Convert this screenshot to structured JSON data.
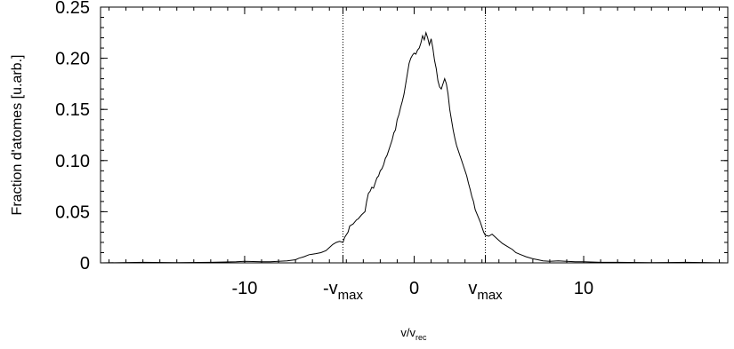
{
  "chart_data": {
    "type": "line",
    "title": "",
    "ylabel": "Fraction d'atomes [u.arb.]",
    "xlabel": {
      "main": "v/v",
      "sub": "rec"
    },
    "xlim": [
      -18.5,
      18.5
    ],
    "ylim": [
      0,
      0.25
    ],
    "grid": false,
    "y_ticks": [
      {
        "value": 0,
        "label": "0"
      },
      {
        "value": 0.05,
        "label": "0.05"
      },
      {
        "value": 0.1,
        "label": "0.10"
      },
      {
        "value": 0.15,
        "label": "0.15"
      },
      {
        "value": 0.2,
        "label": "0.20"
      },
      {
        "value": 0.25,
        "label": "0.25"
      }
    ],
    "x_ticks": [
      {
        "value": -10,
        "label": "-10"
      },
      {
        "value": -4.2,
        "main": "-v",
        "sub": "max"
      },
      {
        "value": 0,
        "label": "0"
      },
      {
        "value": 4.2,
        "main": "v",
        "sub": "max"
      },
      {
        "value": 10,
        "label": "10"
      }
    ],
    "vlines": [
      -4.2,
      4.2
    ],
    "series": [
      {
        "points": [
          [
            -18.5,
            0.0
          ],
          [
            -16,
            0.0005
          ],
          [
            -14,
            0.0003
          ],
          [
            -12,
            0.0005
          ],
          [
            -10.5,
            0.001
          ],
          [
            -10,
            0.0015
          ],
          [
            -9,
            0.001
          ],
          [
            -8.5,
            0.001
          ],
          [
            -8,
            0.0015
          ],
          [
            -7.5,
            0.002
          ],
          [
            -7,
            0.003
          ],
          [
            -6.8,
            0.0045
          ],
          [
            -6.5,
            0.006
          ],
          [
            -6.2,
            0.008
          ],
          [
            -6,
            0.0085
          ],
          [
            -5.8,
            0.009
          ],
          [
            -5.5,
            0.01
          ],
          [
            -5.2,
            0.012
          ],
          [
            -5,
            0.015
          ],
          [
            -4.8,
            0.018
          ],
          [
            -4.6,
            0.02
          ],
          [
            -4.4,
            0.021
          ],
          [
            -4.2,
            0.02
          ],
          [
            -4.1,
            0.025
          ],
          [
            -3.9,
            0.03
          ],
          [
            -3.8,
            0.036
          ],
          [
            -3.6,
            0.038
          ],
          [
            -3.4,
            0.042
          ],
          [
            -3.3,
            0.043
          ],
          [
            -3.1,
            0.047
          ],
          [
            -2.9,
            0.05
          ],
          [
            -2.8,
            0.06
          ],
          [
            -2.7,
            0.068
          ],
          [
            -2.6,
            0.07
          ],
          [
            -2.5,
            0.074
          ],
          [
            -2.4,
            0.073
          ],
          [
            -2.3,
            0.078
          ],
          [
            -2.2,
            0.083
          ],
          [
            -2.1,
            0.085
          ],
          [
            -2.0,
            0.09
          ],
          [
            -1.9,
            0.092
          ],
          [
            -1.8,
            0.096
          ],
          [
            -1.7,
            0.102
          ],
          [
            -1.6,
            0.105
          ],
          [
            -1.5,
            0.11
          ],
          [
            -1.4,
            0.115
          ],
          [
            -1.3,
            0.12
          ],
          [
            -1.2,
            0.127
          ],
          [
            -1.1,
            0.13
          ],
          [
            -1.0,
            0.14
          ],
          [
            -0.9,
            0.145
          ],
          [
            -0.8,
            0.152
          ],
          [
            -0.7,
            0.158
          ],
          [
            -0.6,
            0.165
          ],
          [
            -0.5,
            0.175
          ],
          [
            -0.4,
            0.185
          ],
          [
            -0.3,
            0.195
          ],
          [
            -0.2,
            0.2
          ],
          [
            -0.1,
            0.203
          ],
          [
            0.0,
            0.205
          ],
          [
            0.1,
            0.204
          ],
          [
            0.2,
            0.208
          ],
          [
            0.3,
            0.21
          ],
          [
            0.4,
            0.215
          ],
          [
            0.5,
            0.222
          ],
          [
            0.6,
            0.218
          ],
          [
            0.7,
            0.225
          ],
          [
            0.8,
            0.22
          ],
          [
            0.9,
            0.213
          ],
          [
            1.0,
            0.219
          ],
          [
            1.1,
            0.21
          ],
          [
            1.2,
            0.198
          ],
          [
            1.3,
            0.19
          ],
          [
            1.4,
            0.178
          ],
          [
            1.5,
            0.172
          ],
          [
            1.6,
            0.17
          ],
          [
            1.7,
            0.175
          ],
          [
            1.8,
            0.18
          ],
          [
            1.9,
            0.175
          ],
          [
            2.0,
            0.165
          ],
          [
            2.1,
            0.15
          ],
          [
            2.2,
            0.14
          ],
          [
            2.3,
            0.13
          ],
          [
            2.4,
            0.122
          ],
          [
            2.5,
            0.115
          ],
          [
            2.6,
            0.11
          ],
          [
            2.7,
            0.105
          ],
          [
            2.8,
            0.1
          ],
          [
            2.9,
            0.095
          ],
          [
            3.0,
            0.09
          ],
          [
            3.1,
            0.085
          ],
          [
            3.2,
            0.078
          ],
          [
            3.3,
            0.072
          ],
          [
            3.4,
            0.065
          ],
          [
            3.5,
            0.06
          ],
          [
            3.6,
            0.052
          ],
          [
            3.7,
            0.048
          ],
          [
            3.8,
            0.044
          ],
          [
            3.9,
            0.04
          ],
          [
            4.0,
            0.035
          ],
          [
            4.1,
            0.03
          ],
          [
            4.2,
            0.027
          ],
          [
            4.4,
            0.026
          ],
          [
            4.6,
            0.028
          ],
          [
            4.8,
            0.025
          ],
          [
            5.0,
            0.022
          ],
          [
            5.2,
            0.019
          ],
          [
            5.5,
            0.016
          ],
          [
            5.8,
            0.013
          ],
          [
            6.0,
            0.01
          ],
          [
            6.3,
            0.008
          ],
          [
            6.6,
            0.006
          ],
          [
            7.0,
            0.004
          ],
          [
            7.3,
            0.003
          ],
          [
            7.6,
            0.002
          ],
          [
            8.0,
            0.0015
          ],
          [
            8.5,
            0.002
          ],
          [
            9.0,
            0.0015
          ],
          [
            9.5,
            0.001
          ],
          [
            10,
            0.001
          ],
          [
            11,
            0.0005
          ],
          [
            12,
            0.0005
          ],
          [
            14,
            0.0003
          ],
          [
            16,
            0.0005
          ],
          [
            18.5,
            0.0
          ]
        ]
      }
    ]
  }
}
